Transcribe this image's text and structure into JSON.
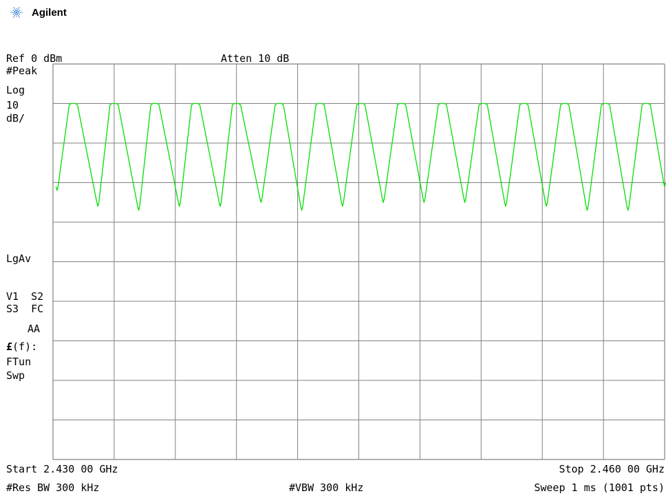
{
  "brand": {
    "name": "Agilent",
    "logo_icon": "agilent-spark-icon",
    "logo_color": "#3b7fd4"
  },
  "header": {
    "ref_level": "Ref 0 dBm",
    "attenuation": "Atten 10 dB"
  },
  "side_labels": {
    "detector": "#Peak",
    "scale_type": "Log",
    "scale_value": "10",
    "scale_unit": "dB/",
    "averaging": "LgAv",
    "row_v1_s2": "V1  S2",
    "row_s3_fc": "S3  FC",
    "row_aa": "AA",
    "func_f": "(f):",
    "func_symbol": "£",
    "ftun": "FTun",
    "swp": "Swp"
  },
  "footer": {
    "start": "Start 2.430 00 GHz",
    "stop": "Stop 2.460 00 GHz",
    "res_bw": "#Res BW 300 kHz",
    "vbw": "#VBW 300 kHz",
    "sweep": "Sweep 1 ms (1001 pts)"
  },
  "colors": {
    "trace": "#00e000",
    "grid": "#808080",
    "background": "#ffffff",
    "text": "#000000"
  },
  "chart_data": {
    "type": "line",
    "title": "",
    "xlabel": "",
    "ylabel": "",
    "x_unit": "GHz",
    "y_unit": "dBm",
    "xlim": [
      2.43,
      2.46
    ],
    "ylim": [
      -100,
      0
    ],
    "grid": true,
    "grid_divisions": {
      "x": 10,
      "y": 10
    },
    "series": [
      {
        "peaks": [
          {
            "x": 2.431,
            "y": -10.0
          },
          {
            "x": 2.433,
            "y": -10.0
          },
          {
            "x": 2.435,
            "y": -10.0
          },
          {
            "x": 2.437,
            "y": -10.0
          },
          {
            "x": 2.439,
            "y": -10.0
          },
          {
            "x": 2.4411,
            "y": -10.0
          },
          {
            "x": 2.4431,
            "y": -10.0
          },
          {
            "x": 2.4451,
            "y": -10.0
          },
          {
            "x": 2.4471,
            "y": -10.0
          },
          {
            "x": 2.4491,
            "y": -10.0
          },
          {
            "x": 2.4511,
            "y": -10.0
          },
          {
            "x": 2.4531,
            "y": -10.0
          },
          {
            "x": 2.4551,
            "y": -10.0
          },
          {
            "x": 2.4571,
            "y": -10.0
          },
          {
            "x": 2.4591,
            "y": -10.0
          }
        ],
        "valleys": [
          {
            "x": 2.4302,
            "y": -32.0
          },
          {
            "x": 2.4322,
            "y": -36.0
          },
          {
            "x": 2.4342,
            "y": -37.0
          },
          {
            "x": 2.4362,
            "y": -36.0
          },
          {
            "x": 2.4382,
            "y": -36.0
          },
          {
            "x": 2.4402,
            "y": -35.0
          },
          {
            "x": 2.4422,
            "y": -37.0
          },
          {
            "x": 2.4442,
            "y": -36.0
          },
          {
            "x": 2.4462,
            "y": -35.0
          },
          {
            "x": 2.4482,
            "y": -35.0
          },
          {
            "x": 2.4502,
            "y": -35.0
          },
          {
            "x": 2.4522,
            "y": -36.0
          },
          {
            "x": 2.4542,
            "y": -36.0
          },
          {
            "x": 2.4562,
            "y": -37.0
          },
          {
            "x": 2.4582,
            "y": -37.0
          },
          {
            "x": 2.46,
            "y": -31.0
          }
        ]
      }
    ]
  }
}
